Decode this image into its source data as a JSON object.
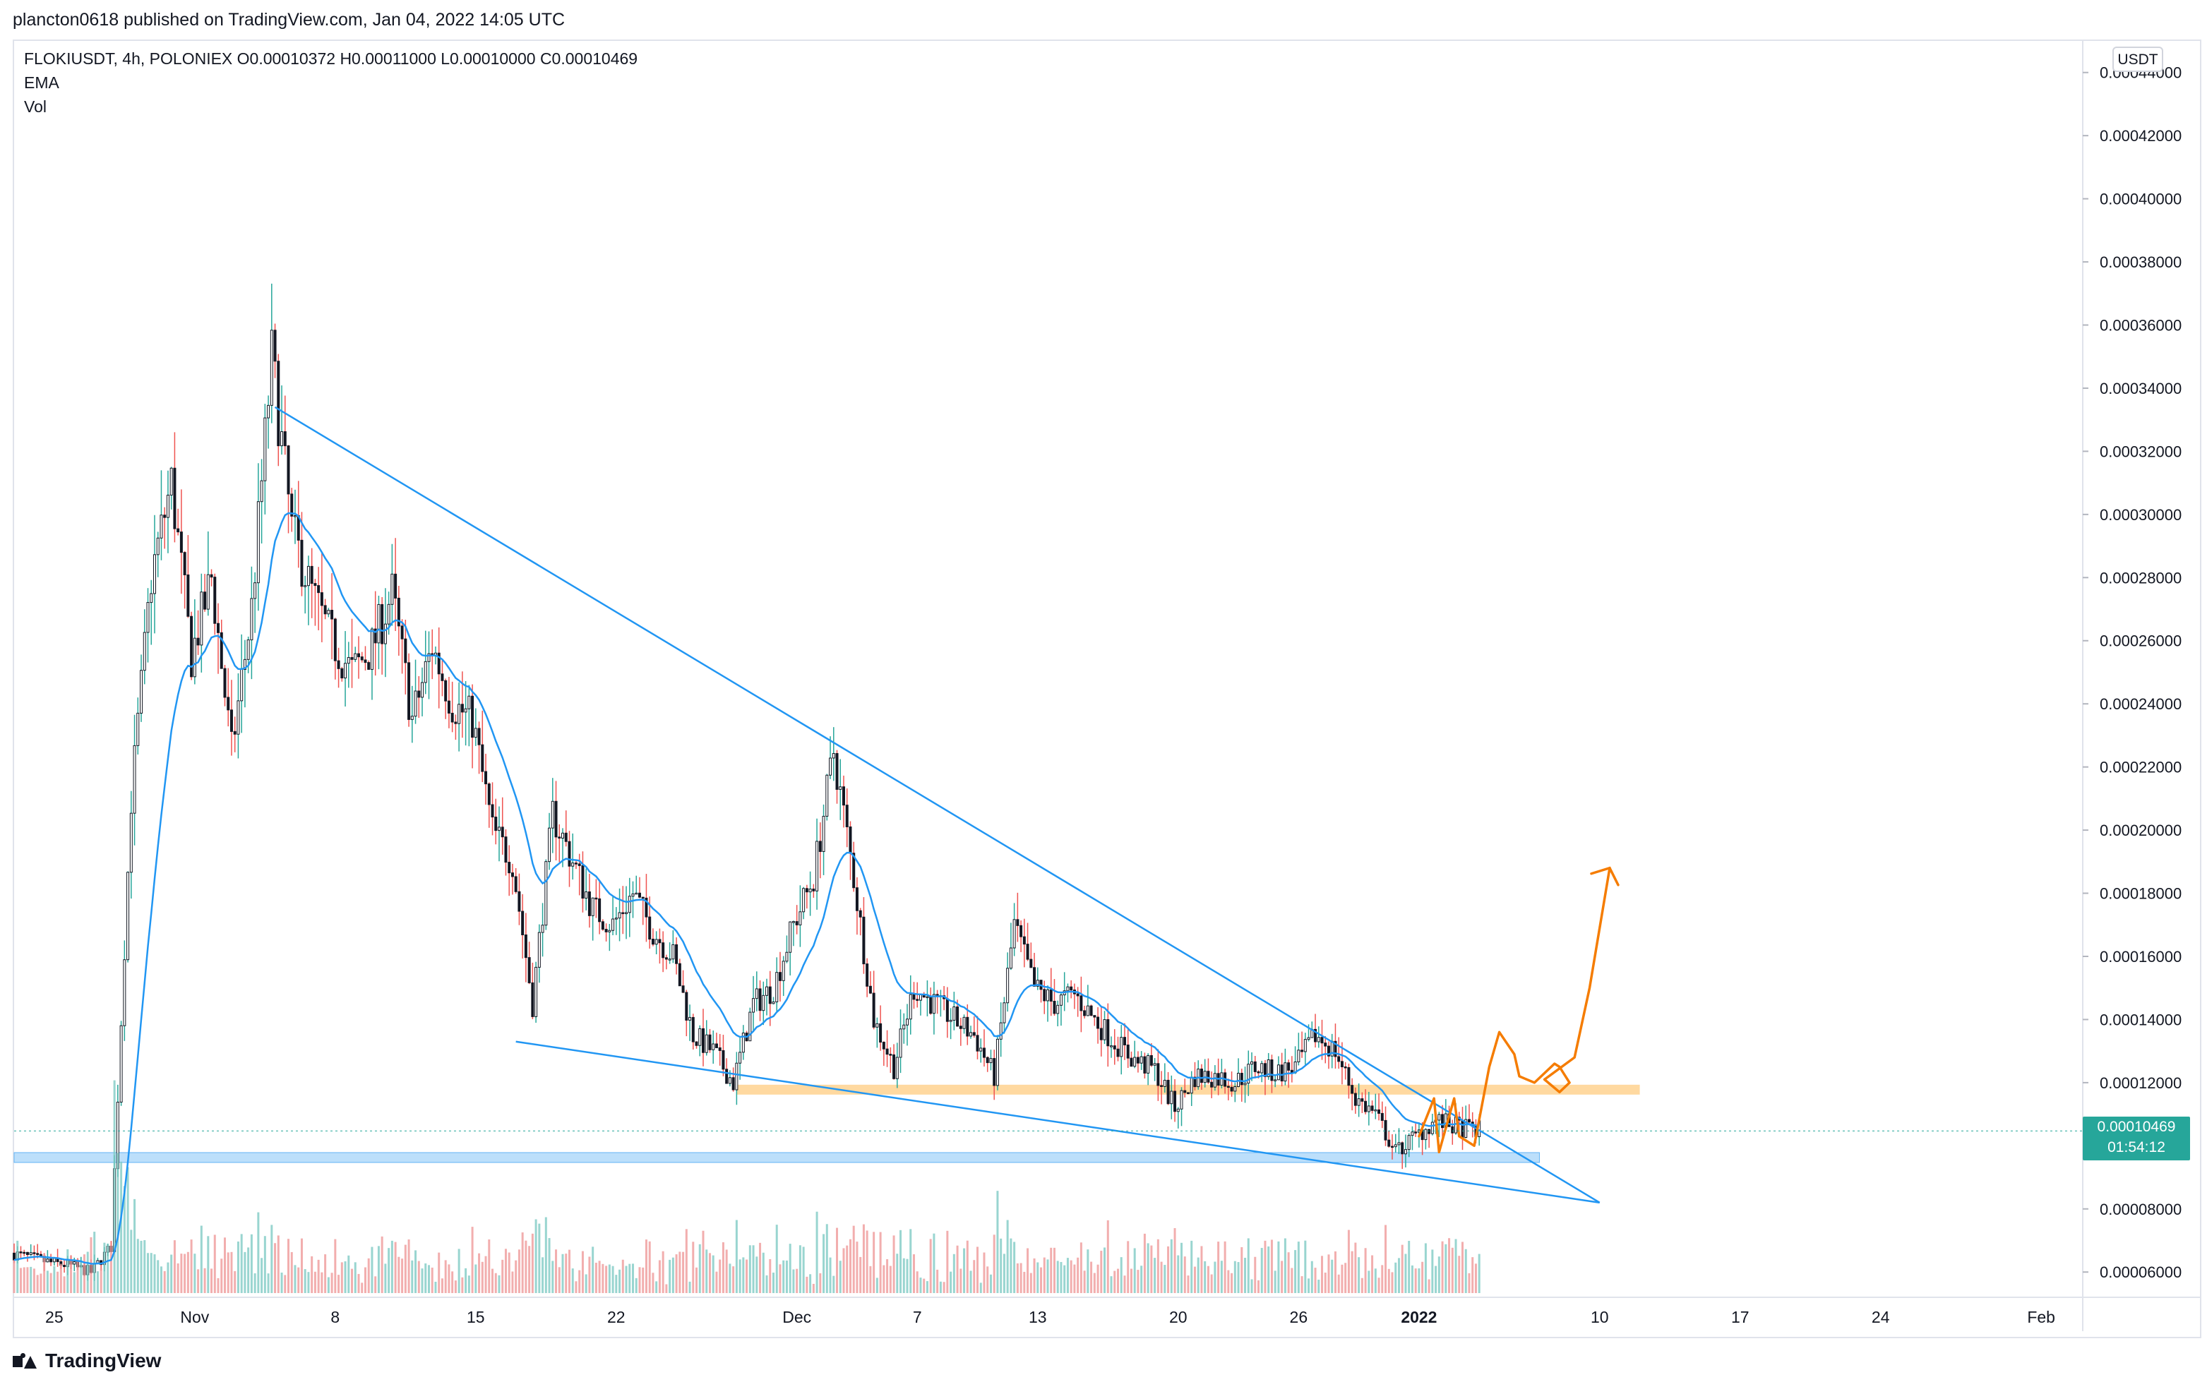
{
  "header": {
    "publish_line": "plancton0618 published on TradingView.com, Jan 04, 2022 14:05 UTC"
  },
  "legend": {
    "symbol_line": "FLOKIUSDT, 4h, POLONIEX  O0.00010372  H0.00011000  L0.00010000  C0.00010469",
    "ema_label": "EMA",
    "vol_label": "Vol"
  },
  "price_scale": {
    "unit": "USDT"
  },
  "last_price": {
    "value": "0.00010469",
    "countdown": "01:54:12"
  },
  "footer": {
    "brand": "TradingView"
  },
  "colors": {
    "up": "#131722",
    "down": "#131722",
    "wick": "#131722",
    "wick_up_accent": "#26a69a",
    "wick_down_accent": "#ef5350",
    "ema": "#2196f3",
    "trendline": "#2196f3",
    "support_zone": "#90caf9",
    "resistance_zone": "#ffcc80",
    "projection": "#f57c00",
    "price_tag": "#26a69a",
    "vol_up": "#80cbc4",
    "vol_down": "#ef9a9a"
  },
  "chart_data": {
    "type": "candlestick",
    "symbol": "FLOKIUSDT",
    "interval": "4h",
    "exchange": "POLONIEX",
    "ylim": [
      5.2e-05,
      0.00045
    ],
    "y_ticks": [
      "0.00044000",
      "0.00042000",
      "0.00040000",
      "0.00038000",
      "0.00036000",
      "0.00034000",
      "0.00032000",
      "0.00030000",
      "0.00028000",
      "0.00026000",
      "0.00024000",
      "0.00022000",
      "0.00020000",
      "0.00018000",
      "0.00016000",
      "0.00014000",
      "0.00012000",
      "0.00010000",
      "0.00008000",
      "0.00006000"
    ],
    "x_ticks": [
      {
        "label": "25",
        "date": "2021-10-25"
      },
      {
        "label": "Nov",
        "date": "2021-11-01"
      },
      {
        "label": "8",
        "date": "2021-11-08"
      },
      {
        "label": "15",
        "date": "2021-11-15"
      },
      {
        "label": "22",
        "date": "2021-11-22"
      },
      {
        "label": "Dec",
        "date": "2021-12-01"
      },
      {
        "label": "7",
        "date": "2021-12-07"
      },
      {
        "label": "13",
        "date": "2021-12-13"
      },
      {
        "label": "20",
        "date": "2021-12-20"
      },
      {
        "label": "26",
        "date": "2021-12-26"
      },
      {
        "label": "2022",
        "date": "2022-01-01",
        "bold": true
      },
      {
        "label": "10",
        "date": "2022-01-10"
      },
      {
        "label": "17",
        "date": "2022-01-17"
      },
      {
        "label": "24",
        "date": "2022-01-24"
      },
      {
        "label": "Feb",
        "date": "2022-02-01"
      }
    ],
    "x_range": [
      "2021-10-23",
      "2022-02-03"
    ],
    "price_path": [
      [
        "2021-10-23",
        6.6e-05
      ],
      [
        "2021-10-25",
        6.3e-05
      ],
      [
        "2021-10-26",
        6.2e-05
      ],
      [
        "2021-10-27",
        6e-05
      ],
      [
        "2021-10-28",
        6.8e-05
      ],
      [
        "2021-10-28T12:00",
        0.00014
      ],
      [
        "2021-10-29",
        0.00021
      ],
      [
        "2021-10-30",
        0.00028
      ],
      [
        "2021-10-31",
        0.00031
      ],
      [
        "2021-11-01",
        0.000255
      ],
      [
        "2021-11-02",
        0.00028
      ],
      [
        "2021-11-03",
        0.000225
      ],
      [
        "2021-11-04",
        0.00027
      ],
      [
        "2021-11-05",
        0.00035
      ],
      [
        "2021-11-06",
        0.000295
      ],
      [
        "2021-11-07",
        0.000275
      ],
      [
        "2021-11-08",
        0.00026
      ],
      [
        "2021-11-09",
        0.00025
      ],
      [
        "2021-11-10",
        0.000258
      ],
      [
        "2021-11-11",
        0.000275
      ],
      [
        "2021-11-12",
        0.000235
      ],
      [
        "2021-11-13",
        0.000258
      ],
      [
        "2021-11-14",
        0.00024
      ],
      [
        "2021-11-15",
        0.000235
      ],
      [
        "2021-11-16",
        0.0002
      ],
      [
        "2021-11-17",
        0.00019
      ],
      [
        "2021-11-18",
        0.000145
      ],
      [
        "2021-11-19",
        0.000205
      ],
      [
        "2021-11-20",
        0.00019
      ],
      [
        "2021-11-21",
        0.000175
      ],
      [
        "2021-11-22",
        0.00017
      ],
      [
        "2021-11-23",
        0.00018
      ],
      [
        "2021-11-24",
        0.000168
      ],
      [
        "2021-11-25",
        0.00016
      ],
      [
        "2021-11-26",
        0.000135
      ],
      [
        "2021-11-27",
        0.00013
      ],
      [
        "2021-11-28",
        0.00012
      ],
      [
        "2021-11-29",
        0.000145
      ],
      [
        "2021-11-30",
        0.00015
      ],
      [
        "2021-12-01",
        0.00017
      ],
      [
        "2021-12-02",
        0.000185
      ],
      [
        "2021-12-03",
        0.000225
      ],
      [
        "2021-12-04",
        0.000185
      ],
      [
        "2021-12-05",
        0.00014
      ],
      [
        "2021-12-06",
        0.000125
      ],
      [
        "2021-12-07",
        0.00015
      ],
      [
        "2021-12-08",
        0.000145
      ],
      [
        "2021-12-09",
        0.00014
      ],
      [
        "2021-12-10",
        0.000135
      ],
      [
        "2021-12-11",
        0.000122
      ],
      [
        "2021-12-12",
        0.00017
      ],
      [
        "2021-12-13",
        0.00015
      ],
      [
        "2021-12-14",
        0.000145
      ],
      [
        "2021-12-15",
        0.000148
      ],
      [
        "2021-12-16",
        0.00014
      ],
      [
        "2021-12-17",
        0.000133
      ],
      [
        "2021-12-18",
        0.000127
      ],
      [
        "2021-12-19",
        0.000124
      ],
      [
        "2021-12-20",
        0.000112
      ],
      [
        "2021-12-21",
        0.000122
      ],
      [
        "2021-12-22",
        0.000122
      ],
      [
        "2021-12-23",
        0.00012
      ],
      [
        "2021-12-24",
        0.000125
      ],
      [
        "2021-12-25",
        0.000123
      ],
      [
        "2021-12-26",
        0.000125
      ],
      [
        "2021-12-27",
        0.000135
      ],
      [
        "2021-12-28",
        0.00013
      ],
      [
        "2021-12-29",
        0.000115
      ],
      [
        "2021-12-30",
        0.00011
      ],
      [
        "2021-12-31",
        9.8e-05
      ],
      [
        "2022-01-01",
        0.000103
      ],
      [
        "2022-01-02",
        0.000108
      ],
      [
        "2022-01-03",
        0.000106
      ],
      [
        "2022-01-04",
        0.000105
      ]
    ],
    "last_candle": {
      "open": 0.00010372,
      "high": 0.00011,
      "low": 0.0001,
      "close": 0.00010469
    },
    "drawings": {
      "descending_resistance": [
        [
          "2021-11-05",
          0.000334
        ],
        [
          "2022-01-10",
          8.2e-05
        ]
      ],
      "descending_support": [
        [
          "2021-11-17",
          0.000133
        ],
        [
          "2022-01-10",
          8.2e-05
        ]
      ],
      "resistance_zone": {
        "from": "2021-11-28",
        "to": "2022-01-12",
        "y": [
          0.000116,
          0.000118
        ]
      },
      "support_zone": {
        "from": "2021-10-23",
        "to": "2022-01-07",
        "y": [
          9.5e-05,
          9.65e-05
        ]
      },
      "projection_path": [
        [
          "2022-01-01",
          0.000103
        ],
        [
          "2022-01-01T18:00",
          0.000115
        ],
        [
          "2022-01-02",
          9.8e-05
        ],
        [
          "2022-01-02T18:00",
          0.000115
        ],
        [
          "2022-01-03",
          0.000103
        ],
        [
          "2022-01-03T18:00",
          0.0001
        ],
        [
          "2022-01-04T12:00",
          0.000125
        ],
        [
          "2022-01-05",
          0.000136
        ],
        [
          "2022-01-05T18:00",
          0.000129
        ],
        [
          "2022-01-06",
          0.000122
        ],
        [
          "2022-01-06T18:00",
          0.00012
        ],
        [
          "2022-01-07T18:00",
          0.000126
        ],
        [
          "2022-01-08",
          0.000125
        ],
        [
          "2022-01-08T12:00",
          0.00012
        ],
        [
          "2022-01-08",
          0.000117
        ],
        [
          "2022-01-07T06:00",
          0.000121
        ],
        [
          "2022-01-08T18:00",
          0.000128
        ],
        [
          "2022-01-09T12:00",
          0.00015
        ],
        [
          "2022-01-10T12:00",
          0.000188
        ]
      ]
    }
  }
}
